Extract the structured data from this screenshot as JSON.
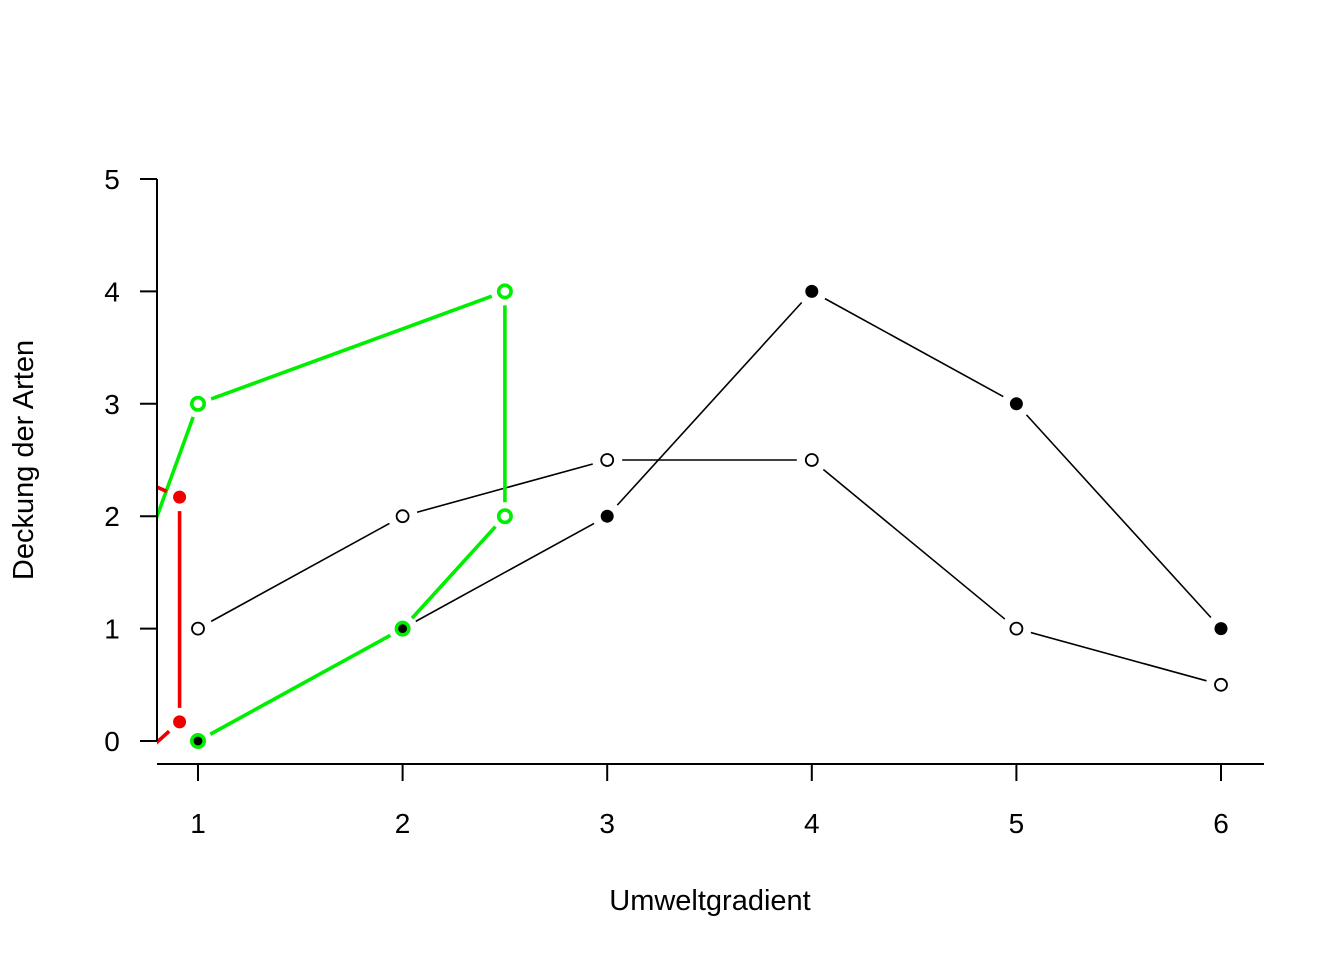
{
  "chart_data": {
    "type": "line",
    "title": "",
    "xlabel": "Umweltgradient",
    "ylabel": "Deckung der Arten",
    "xlim": [
      0.8,
      6.2
    ],
    "ylim": [
      -0.2,
      5.2
    ],
    "x_ticks": [
      1,
      2,
      3,
      4,
      5,
      6
    ],
    "y_ticks": [
      0,
      1,
      2,
      3,
      4,
      5
    ],
    "grid": false,
    "series": [
      {
        "color": "#000000",
        "marker": "filled",
        "points": [
          [
            1,
            0
          ],
          [
            2,
            1
          ],
          [
            3,
            2
          ],
          [
            4,
            4
          ],
          [
            5,
            3
          ],
          [
            6,
            1
          ]
        ]
      },
      {
        "color": "#000000",
        "marker": "open",
        "points": [
          [
            1,
            1
          ],
          [
            2,
            2
          ],
          [
            3,
            2.5
          ],
          [
            4,
            2.5
          ],
          [
            5,
            1
          ],
          [
            6,
            0.5
          ]
        ]
      },
      {
        "color": "#00ee00",
        "marker": "open",
        "points": [
          [
            0.5,
            0.5
          ],
          [
            1,
            3
          ],
          [
            2.5,
            4
          ],
          [
            2.5,
            2
          ],
          [
            2,
            1
          ],
          [
            1,
            0
          ]
        ]
      },
      {
        "color": "#ee0000",
        "marker": "filled",
        "points": [
          [
            0.5,
            2.5
          ],
          [
            0.91,
            2.17
          ],
          [
            0.91,
            0.17
          ],
          [
            0.5,
            -0.5
          ]
        ]
      }
    ]
  }
}
